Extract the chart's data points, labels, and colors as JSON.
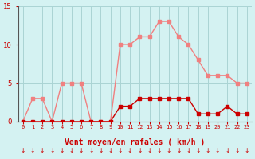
{
  "hours": [
    0,
    1,
    2,
    3,
    4,
    5,
    6,
    7,
    8,
    9,
    10,
    11,
    12,
    13,
    14,
    15,
    16,
    17,
    18,
    19,
    20,
    21,
    22,
    23
  ],
  "rafales": [
    0,
    3,
    3,
    0,
    5,
    5,
    5,
    0,
    0,
    0,
    10,
    10,
    11,
    11,
    13,
    13,
    11,
    10,
    8,
    6,
    6,
    6,
    5,
    5
  ],
  "moyen": [
    0,
    0,
    0,
    0,
    0,
    0,
    0,
    0,
    0,
    0,
    2,
    2,
    3,
    3,
    3,
    3,
    3,
    3,
    1,
    1,
    1,
    2,
    1,
    1
  ],
  "bg_color": "#d4f2f2",
  "grid_color": "#aad4d4",
  "line_rafales_color": "#f08080",
  "line_moyen_color": "#cc0000",
  "xlabel": "Vent moyen/en rafales ( km/h )",
  "ylim": [
    0,
    15
  ],
  "xlim_min": -0.5,
  "xlim_max": 23.5,
  "yticks": [
    0,
    5,
    10,
    15
  ],
  "tick_color": "#cc0000",
  "xlabel_color": "#cc0000",
  "axis_color": "#555555",
  "arrow_char": "↓"
}
